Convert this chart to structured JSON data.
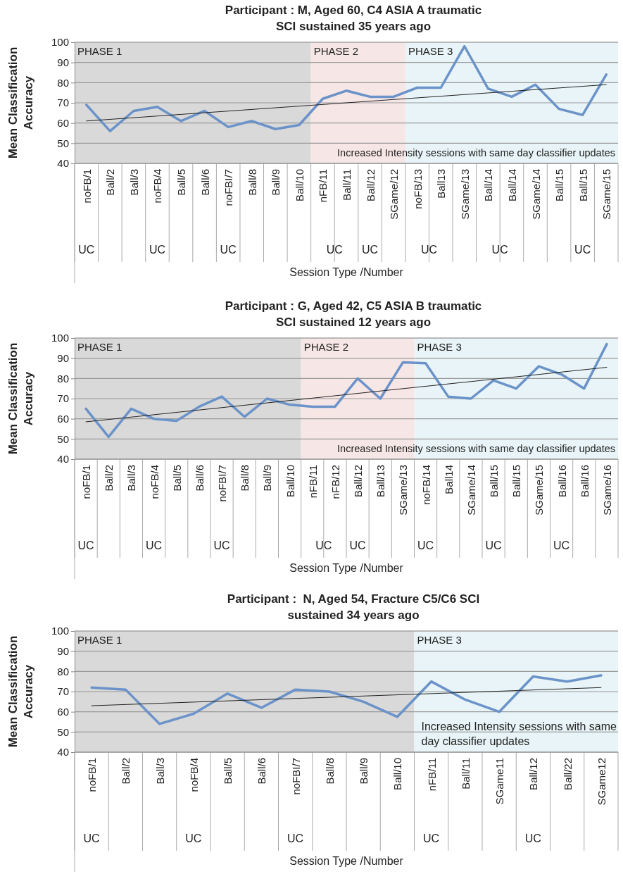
{
  "chart_data": [
    {
      "type": "line",
      "title": "Participant : M, Aged 60, C4 ASIA A traumatic SCI sustained 35 years ago",
      "xlabel": "Session Type /Number",
      "ylabel": "Mean Classification Accuracy",
      "categories": [
        "noFB/1",
        "Ball/2",
        "Ball/3",
        "noFB/4",
        "Ball/5",
        "Ball/6",
        "noFBI/7",
        "Ball/8",
        "Ball/9",
        "Ball/10",
        "nFB/11",
        "Ball/11",
        "Ball/12",
        "SGame/12",
        "noFB/13",
        "Ball13",
        "SGame/13",
        "Ball/14",
        "Ball/14",
        "SGame/14",
        "Ball/15",
        "Ball/15",
        "SGame/15"
      ],
      "series": [
        {
          "color": "#6b93c9",
          "values": [
            69,
            56,
            66,
            68,
            61,
            66,
            58,
            61,
            57,
            59,
            72,
            76,
            73,
            73,
            77.5,
            77.5,
            98,
            77,
            73,
            79,
            67,
            64,
            84
          ]
        },
        {
          "color": "#222222",
          "values": [
            61,
            null,
            null,
            null,
            null,
            null,
            null,
            null,
            null,
            null,
            null,
            null,
            null,
            null,
            null,
            null,
            null,
            null,
            null,
            null,
            null,
            null,
            79
          ]
        }
      ],
      "ylim": [
        40,
        100
      ],
      "yticks": [
        40,
        50,
        60,
        70,
        80,
        90,
        100
      ],
      "grid": "y",
      "bands": [
        {
          "axis": "x",
          "from": "noFB/1",
          "to": "Ball/10",
          "label": "PHASE 1",
          "color": "#d9d9d9"
        },
        {
          "axis": "x",
          "from": "nFB/11",
          "to": "SGame/12",
          "label": "PHASE 2",
          "color": "#f7e6e6"
        },
        {
          "axis": "x",
          "from": "noFB/13",
          "to": "SGame/15",
          "label": "PHASE 3",
          "color": "#e8f4f7"
        }
      ],
      "annotations": [
        "Increased Intensity sessions with same day classifier updates",
        "UC",
        "UC",
        "UC",
        "UC",
        "UC",
        "UC",
        "UC",
        "UC"
      ]
    },
    {
      "type": "line",
      "title": "Participant : G, Aged 42, C5 ASIA B traumatic SCI sustained 12 years ago",
      "xlabel": "Session Type /Number",
      "ylabel": "Mean Classification Accuracy",
      "categories": [
        "noFB/1",
        "Ball/2",
        "Ball/3",
        "noFB/4",
        "Ball/5",
        "Ball/6",
        "noFBI/7",
        "Ball/8",
        "Ball/9",
        "Ball/10",
        "nFB/11",
        "nFB/12",
        "Ball/12",
        "Ball/13",
        "SGame/13",
        "noFB/14",
        "Ball14",
        "SGame/14",
        "Ball/15",
        "Ball/15",
        "SGame/15",
        "Ball/16",
        "Ball/16",
        "SGame/16"
      ],
      "series": [
        {
          "color": "#6b93c9",
          "values": [
            65,
            51,
            65,
            60,
            59,
            66,
            71,
            61,
            70,
            67,
            66,
            66,
            80,
            70,
            88,
            87.5,
            71,
            70,
            79,
            75,
            86,
            82,
            75,
            97
          ]
        },
        {
          "color": "#222222",
          "values": [
            58.5,
            null,
            null,
            null,
            null,
            null,
            null,
            null,
            null,
            null,
            null,
            null,
            null,
            null,
            null,
            null,
            null,
            null,
            null,
            null,
            null,
            null,
            null,
            85.5
          ]
        }
      ],
      "ylim": [
        40,
        100
      ],
      "yticks": [
        40,
        50,
        60,
        70,
        80,
        90,
        100
      ],
      "grid": "y",
      "bands": [
        {
          "axis": "x",
          "from": "noFB/1",
          "to": "Ball/10",
          "label": "PHASE 1",
          "color": "#d9d9d9"
        },
        {
          "axis": "x",
          "from": "nFB/11",
          "to": "SGame/13",
          "label": "PHASE 2",
          "color": "#f7e6e6"
        },
        {
          "axis": "x",
          "from": "noFB/14",
          "to": "SGame/16",
          "label": "PHASE 3",
          "color": "#e8f4f7"
        }
      ],
      "annotations": [
        "Increased Intensity sessions with same day classifier updates",
        "UC",
        "UC",
        "UC",
        "UC",
        "UC",
        "UC",
        "UC",
        "UC"
      ]
    },
    {
      "type": "line",
      "title": "Participant :  N, Aged 54, Fracture C5/C6 SCI sustained 34 years ago",
      "xlabel": "Session Type /Number",
      "ylabel": "Mean Classification Accuracy",
      "categories": [
        "noFB/1",
        "Ball/2",
        "Ball/3",
        "noFB/4",
        "Ball/5",
        "Ball/6",
        "noFBI/7",
        "Ball/8",
        "Ball/9",
        "Ball/10",
        "nFB/11",
        "Ball/11",
        "SGame11",
        "Ball/12",
        "Ball/22",
        "SGame12"
      ],
      "series": [
        {
          "color": "#6b93c9",
          "values": [
            72,
            71,
            54,
            59,
            69,
            62,
            71,
            70,
            65,
            57.5,
            75,
            66,
            60,
            77.5,
            75,
            78
          ]
        },
        {
          "color": "#222222",
          "values": [
            63,
            null,
            null,
            null,
            null,
            null,
            null,
            null,
            null,
            null,
            null,
            null,
            null,
            null,
            null,
            72
          ]
        }
      ],
      "ylim": [
        40,
        100
      ],
      "yticks": [
        40,
        50,
        60,
        70,
        80,
        90,
        100
      ],
      "grid": "y",
      "bands": [
        {
          "axis": "x",
          "from": "noFB/1",
          "to": "Ball/10",
          "label": "PHASE 1",
          "color": "#d9d9d9"
        },
        {
          "axis": "x",
          "from": "nFB/11",
          "to": "SGame12",
          "label": "PHASE 3",
          "color": "#e8f4f7"
        }
      ],
      "annotations": [
        "Increased Intensity sessions with same day classifier updates",
        "UC",
        "UC",
        "UC",
        "UC",
        "UC"
      ]
    }
  ]
}
